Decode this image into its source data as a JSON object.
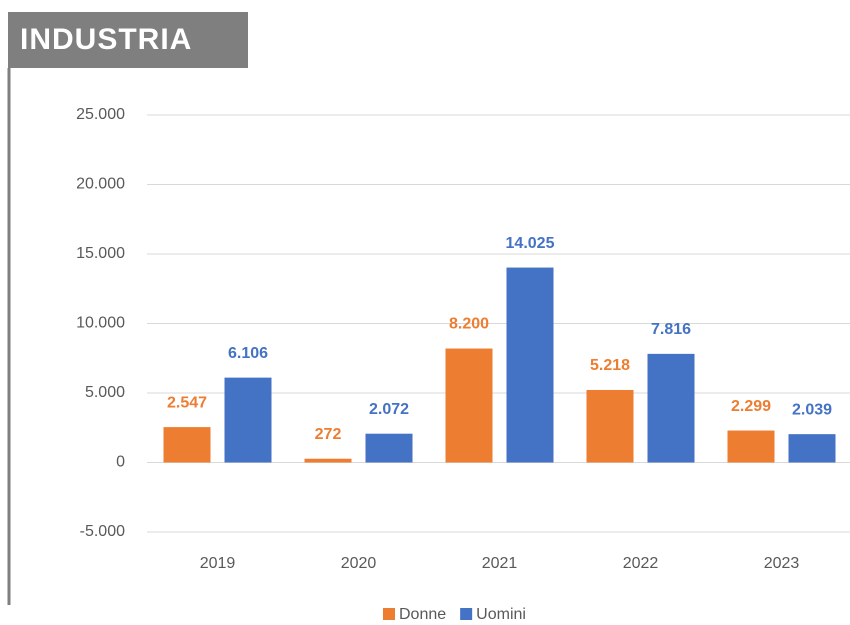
{
  "chart_data": {
    "type": "bar",
    "title": "INDUSTRIA",
    "categories": [
      "2019",
      "2020",
      "2021",
      "2022",
      "2023"
    ],
    "series": [
      {
        "name": "Donne",
        "color": "#ed7d31",
        "values": [
          2547,
          272,
          8200,
          5218,
          2299
        ],
        "value_labels": [
          "2.547",
          "272",
          "8.200",
          "5.218",
          "2.299"
        ]
      },
      {
        "name": "Uomini",
        "color": "#4472c4",
        "values": [
          6106,
          2072,
          14025,
          7816,
          2039
        ],
        "value_labels": [
          "6.106",
          "2.072",
          "14.025",
          "7.816",
          "2.039"
        ]
      }
    ],
    "ylim": [
      -5000,
      25000
    ],
    "yticks": [
      {
        "value": -5000,
        "label": "-5.000"
      },
      0,
      {
        "value": 5000,
        "label": "5.000"
      },
      {
        "value": 10000,
        "label": "10.000"
      },
      {
        "value": 15000,
        "label": "15.000"
      },
      {
        "value": 20000,
        "label": "20.000"
      },
      {
        "value": 25000,
        "label": "25.000"
      }
    ],
    "grid": true,
    "legend": "bottom"
  }
}
